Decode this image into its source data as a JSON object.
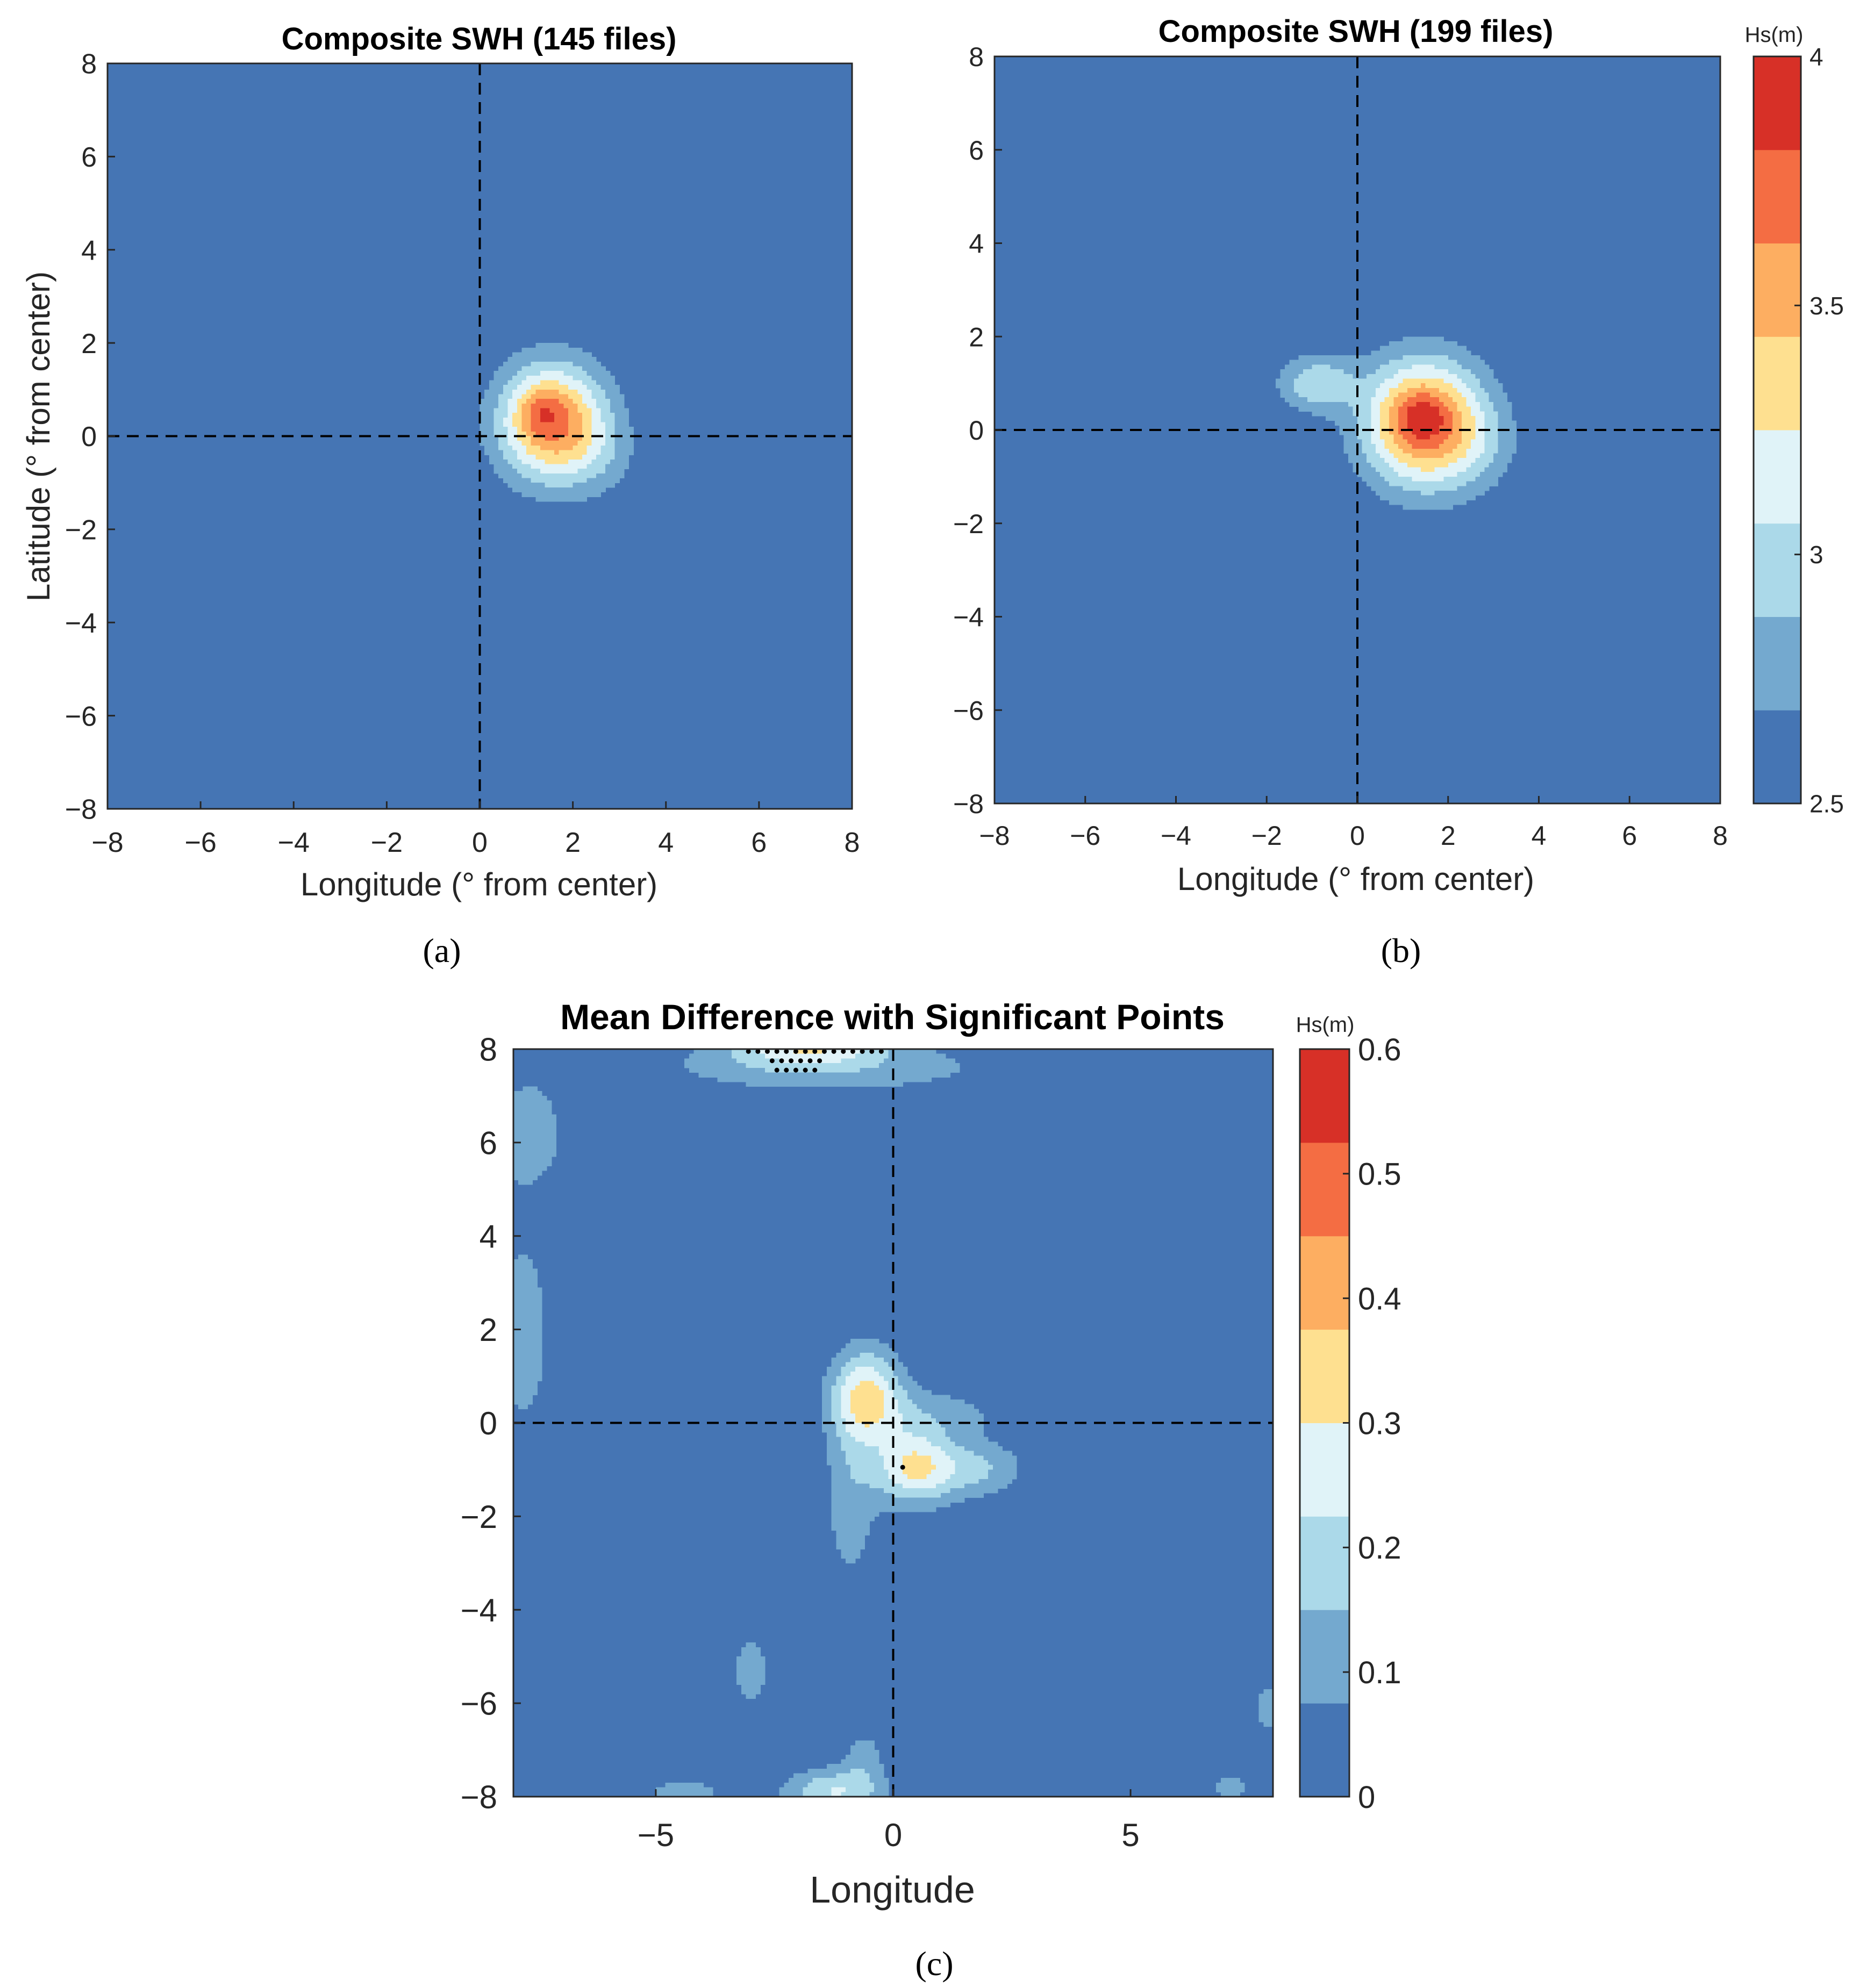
{
  "chart_data": [
    {
      "type": "heatmap",
      "panel_label": "(a)",
      "title": "Composite SWH (145 files)",
      "xlabel": "Longitude (° from center)",
      "ylabel": "Latitude (° from center)",
      "xlim": [
        -8,
        8
      ],
      "ylim": [
        -8,
        8
      ],
      "xticks": [
        "−8",
        "−6",
        "−4",
        "−2",
        "0",
        "2",
        "4",
        "6",
        "8"
      ],
      "yticks": [
        "8",
        "6",
        "4",
        "2",
        "0",
        "−2",
        "−4",
        "−6",
        "−8"
      ],
      "grid": false,
      "reference_lines": {
        "x": 0,
        "y": 0,
        "style": "dashed"
      },
      "levels": [
        2.5,
        2.667,
        2.833,
        3.0,
        3.167,
        3.333,
        3.5,
        3.667,
        3.833,
        4.0
      ],
      "level_colors": [
        "#4575b4",
        "#74a9cf",
        "#abd9e9",
        "#e0f3f8",
        "#fee090",
        "#fdae61",
        "#f46d43",
        "#d73027"
      ],
      "blobs": [
        {
          "cx": 1.55,
          "cy": 0.3,
          "sx": 1.15,
          "sy": 1.25,
          "amp": 1.05
        },
        {
          "cx": 1.3,
          "cy": 0.55,
          "sx": 0.45,
          "sy": 0.45,
          "amp": 0.2
        },
        {
          "cx": 2.6,
          "cy": -0.4,
          "sx": 0.8,
          "sy": 0.9,
          "amp": 0.15
        }
      ]
    },
    {
      "type": "heatmap",
      "panel_label": "(b)",
      "title": "Composite SWH (199 files)",
      "xlabel": "Longitude (° from center)",
      "ylabel": "",
      "xlim": [
        -8,
        8
      ],
      "ylim": [
        -8,
        8
      ],
      "xticks": [
        "−8",
        "−6",
        "−4",
        "−2",
        "0",
        "2",
        "4",
        "6",
        "8"
      ],
      "yticks": [
        "8",
        "6",
        "4",
        "2",
        "0",
        "−2",
        "−4",
        "−6",
        "−8"
      ],
      "grid": false,
      "reference_lines": {
        "x": 0,
        "y": 0,
        "style": "dashed"
      },
      "colorbar": {
        "label": "Hs(m)",
        "ticks": [
          "4",
          "3.5",
          "3",
          "2.5"
        ],
        "range": [
          2.5,
          4
        ]
      },
      "levels": [
        2.5,
        2.7,
        2.9,
        3.1,
        3.3,
        3.5,
        3.7,
        3.9,
        4.1
      ],
      "level_colors": [
        "#4575b4",
        "#74a9cf",
        "#abd9e9",
        "#e0f3f8",
        "#fee090",
        "#fdae61",
        "#f46d43",
        "#d73027"
      ],
      "blobs": [
        {
          "cx": 1.45,
          "cy": 0.15,
          "sx": 1.3,
          "sy": 1.35,
          "amp": 1.35
        },
        {
          "cx": 1.4,
          "cy": 0.3,
          "sx": 0.55,
          "sy": 0.5,
          "amp": 0.25
        },
        {
          "cx": -0.9,
          "cy": 1.0,
          "sx": 0.85,
          "sy": 0.6,
          "amp": 0.55
        },
        {
          "cx": 2.7,
          "cy": -0.3,
          "sx": 0.9,
          "sy": 1.0,
          "amp": 0.2
        }
      ]
    },
    {
      "type": "heatmap",
      "panel_label": "(c)",
      "title": "Mean Difference with Significant Points",
      "xlabel": "Longitude",
      "ylabel": "",
      "xlim": [
        -8,
        8
      ],
      "ylim": [
        -8,
        8
      ],
      "xticks": [
        "−5",
        "0",
        "5"
      ],
      "yticks": [
        "8",
        "6",
        "4",
        "2",
        "0",
        "−2",
        "−4",
        "−6",
        "−8"
      ],
      "grid": false,
      "reference_lines": {
        "x": 0,
        "y": 0,
        "style": "dashed"
      },
      "colorbar": {
        "label": "Hs(m)",
        "ticks": [
          "0.6",
          "0.5",
          "0.4",
          "0.3",
          "0.2",
          "0.1",
          "0"
        ],
        "range": [
          0,
          0.6
        ]
      },
      "levels": [
        0,
        0.075,
        0.15,
        0.225,
        0.3,
        0.375,
        0.45,
        0.525,
        0.6
      ],
      "level_colors": [
        "#4575b4",
        "#74a9cf",
        "#abd9e9",
        "#e0f3f8",
        "#fee090",
        "#fdae61",
        "#f46d43",
        "#d73027"
      ],
      "blobs": [
        {
          "cx": -0.55,
          "cy": 0.6,
          "sx": 0.75,
          "sy": 1.0,
          "amp": 0.3
        },
        {
          "cx": 0.45,
          "cy": -0.95,
          "sx": 0.85,
          "sy": 0.8,
          "amp": 0.3
        },
        {
          "cx": 1.8,
          "cy": -1.0,
          "sx": 1.0,
          "sy": 0.6,
          "amp": 0.15
        },
        {
          "cx": -0.9,
          "cy": -1.6,
          "sx": 0.6,
          "sy": 2.0,
          "amp": 0.12
        },
        {
          "cx": 0.9,
          "cy": 0.2,
          "sx": 1.6,
          "sy": 0.6,
          "amp": 0.1
        },
        {
          "cx": -1.8,
          "cy": 8.1,
          "sx": 1.6,
          "sy": 0.45,
          "amp": 0.25
        },
        {
          "cx": -1.4,
          "cy": 7.6,
          "sx": 4.0,
          "sy": 0.6,
          "amp": 0.12
        },
        {
          "cx": -7.7,
          "cy": 6.2,
          "sx": 0.9,
          "sy": 1.3,
          "amp": 0.12
        },
        {
          "cx": -7.8,
          "cy": 1.9,
          "sx": 0.6,
          "sy": 2.2,
          "amp": 0.13
        },
        {
          "cx": -3.0,
          "cy": -5.3,
          "sx": 0.45,
          "sy": 0.85,
          "amp": 0.12
        },
        {
          "cx": -1.3,
          "cy": -7.9,
          "sx": 1.0,
          "sy": 0.5,
          "amp": 0.22
        },
        {
          "cx": -0.6,
          "cy": -7.2,
          "sx": 0.5,
          "sy": 0.8,
          "amp": 0.1
        },
        {
          "cx": -4.4,
          "cy": -7.9,
          "sx": 1.2,
          "sy": 0.35,
          "amp": 0.1
        },
        {
          "cx": 7.9,
          "cy": -6.1,
          "sx": 0.3,
          "sy": 0.6,
          "amp": 0.12
        },
        {
          "cx": 7.1,
          "cy": -7.8,
          "sx": 0.5,
          "sy": 0.4,
          "amp": 0.1
        }
      ],
      "significant_points": [
        {
          "x": -3.05,
          "y": 7.95
        },
        {
          "x": -2.85,
          "y": 7.95
        },
        {
          "x": -2.65,
          "y": 7.95
        },
        {
          "x": -2.45,
          "y": 7.95
        },
        {
          "x": -2.25,
          "y": 7.95
        },
        {
          "x": -2.05,
          "y": 7.95
        },
        {
          "x": -1.85,
          "y": 7.95
        },
        {
          "x": -1.65,
          "y": 7.95
        },
        {
          "x": -1.45,
          "y": 7.95
        },
        {
          "x": -1.25,
          "y": 7.95
        },
        {
          "x": -1.05,
          "y": 7.95
        },
        {
          "x": -0.85,
          "y": 7.95
        },
        {
          "x": -0.65,
          "y": 7.95
        },
        {
          "x": -0.45,
          "y": 7.95
        },
        {
          "x": -0.25,
          "y": 7.95
        },
        {
          "x": -2.55,
          "y": 7.75
        },
        {
          "x": -2.35,
          "y": 7.75
        },
        {
          "x": -2.15,
          "y": 7.75
        },
        {
          "x": -1.95,
          "y": 7.75
        },
        {
          "x": -1.75,
          "y": 7.75
        },
        {
          "x": -1.55,
          "y": 7.75
        },
        {
          "x": -2.45,
          "y": 7.55
        },
        {
          "x": -2.25,
          "y": 7.55
        },
        {
          "x": -2.05,
          "y": 7.55
        },
        {
          "x": -1.85,
          "y": 7.55
        },
        {
          "x": -1.65,
          "y": 7.55
        },
        {
          "x": 0.2,
          "y": -0.95
        }
      ]
    }
  ]
}
